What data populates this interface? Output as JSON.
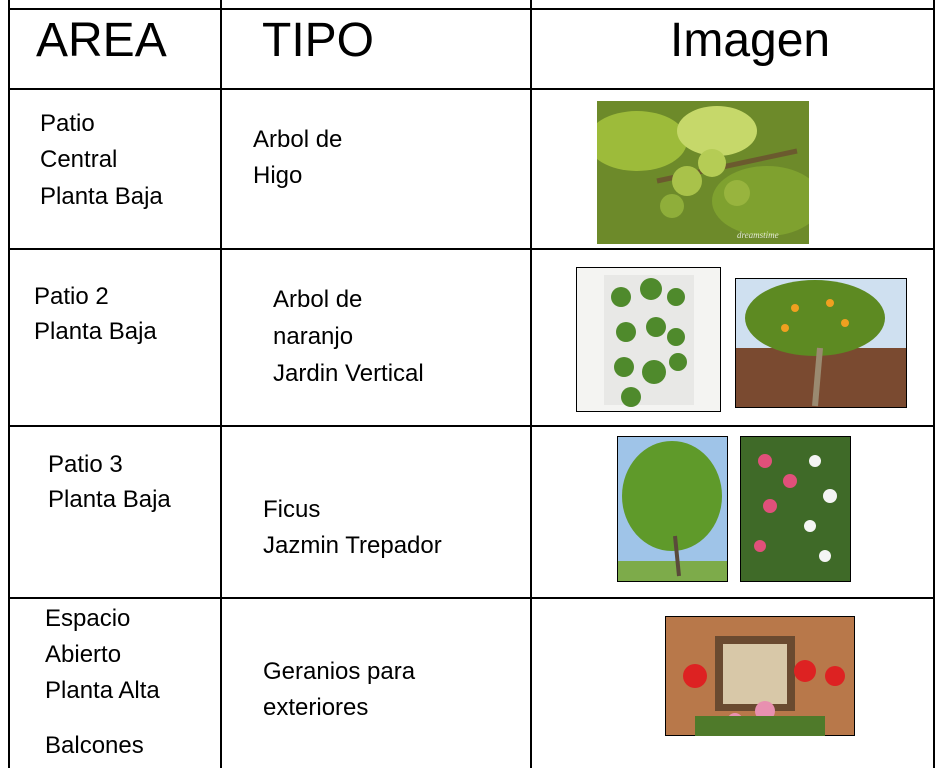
{
  "table": {
    "header": [
      "AREA",
      "TIPO",
      "Imagen"
    ],
    "rows": [
      {
        "area": [
          "Patio",
          "Central",
          "Planta Baja"
        ],
        "tipo": [
          "Arbol de",
          "Higo"
        ]
      },
      {
        "area": [
          "Patio 2",
          "Planta Baja"
        ],
        "tipo": [
          "Arbol de",
          "naranjo",
          "Jardin Vertical"
        ]
      },
      {
        "area": [
          "Patio 3",
          "Planta Baja"
        ],
        "tipo": [
          "Ficus",
          "Jazmin Trepador"
        ]
      },
      {
        "area": [
          "Espacio",
          "Abierto",
          "Planta Alta",
          "Balcones"
        ],
        "tipo": [
          "Geranios para",
          "exteriores"
        ]
      }
    ],
    "watermark": "dreamstime"
  }
}
